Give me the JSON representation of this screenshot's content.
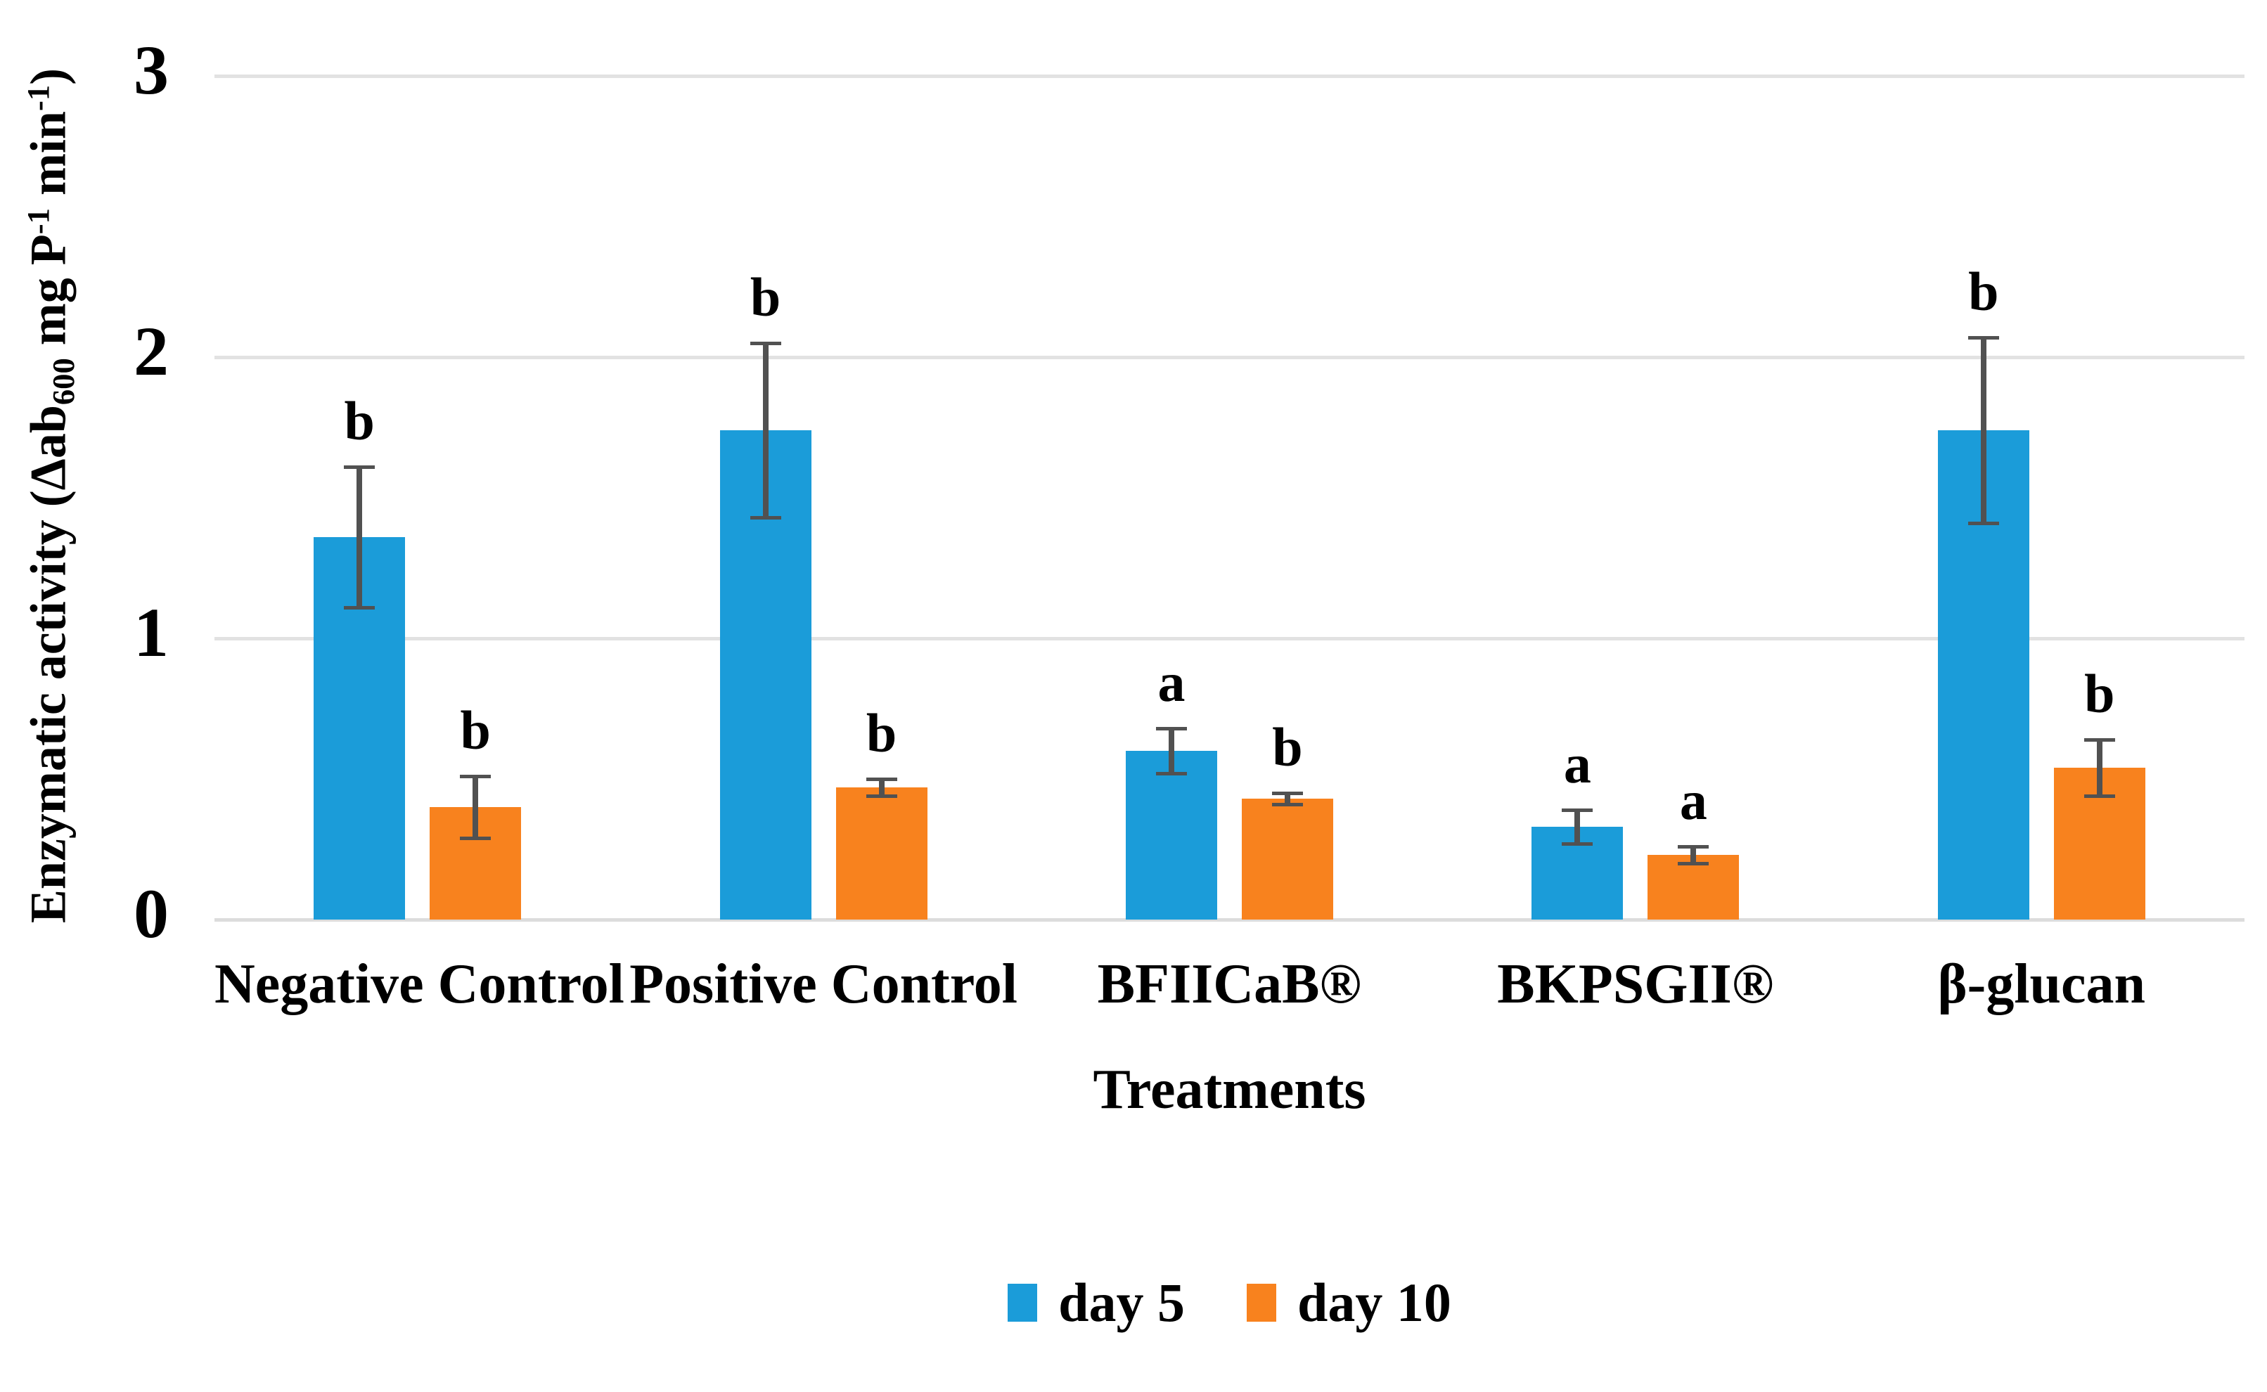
{
  "chart_data": {
    "type": "bar",
    "title": "",
    "xlabel": "Treatments",
    "ylabel": "Enzymatic activity (Δab600 mg P-1 min-1)",
    "ylabel_rich": [
      {
        "text": "Enzymatic activity (Δab"
      },
      {
        "text": "600",
        "script": "sub"
      },
      {
        "text": " mg P"
      },
      {
        "text": "-1",
        "script": "sup"
      },
      {
        "text": " min"
      },
      {
        "text": "-1",
        "script": "sup"
      },
      {
        "text": ")"
      }
    ],
    "categories": [
      "Negative Control",
      "Positive Control",
      "BFIICaB®",
      "BKPSGII®",
      "β-glucan"
    ],
    "series": [
      {
        "name": "day 5",
        "color": "#1B9CD9",
        "values": [
          1.36,
          1.74,
          0.6,
          0.33,
          1.74
        ],
        "errors": [
          0.25,
          0.31,
          0.08,
          0.06,
          0.33
        ],
        "sig_letters": [
          "b",
          "b",
          "a",
          "a",
          "b"
        ]
      },
      {
        "name": "day 10",
        "color": "#F8821E",
        "values": [
          0.4,
          0.47,
          0.43,
          0.23,
          0.54
        ],
        "errors": [
          0.11,
          0.03,
          0.02,
          0.03,
          0.1
        ],
        "sig_letters": [
          "b",
          "b",
          "b",
          "a",
          "b"
        ]
      }
    ],
    "y_ticks": [
      0,
      1,
      2,
      3
    ],
    "ylim": [
      0,
      3
    ],
    "grid": true,
    "legend_position": "bottom",
    "colors": {
      "error_bar": "#515151",
      "gridline": "#E2E2E2",
      "baseline": "#DCDCDC",
      "text": "#000000"
    }
  }
}
